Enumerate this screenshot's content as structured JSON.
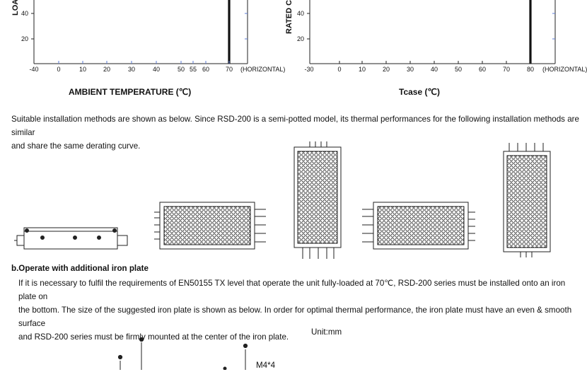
{
  "chart_data": [
    {
      "type": "line",
      "ylabel": "LOA",
      "xlabel": "AMBIENT TEMPERATURE (℃)",
      "x_ticks": [
        "-40",
        "0",
        "10",
        "20",
        "30",
        "40",
        "50",
        "55",
        "60",
        "70",
        "(HORIZONTAL)"
      ],
      "y_ticks": [
        "40",
        "20"
      ],
      "series": [
        {
          "points": [
            [
              70,
              0
            ],
            [
              70,
              100
            ]
          ]
        }
      ]
    },
    {
      "type": "line",
      "ylabel": "RATED C",
      "xlabel": "Tcase (℃)",
      "x_ticks": [
        "-30",
        "0",
        "10",
        "20",
        "30",
        "40",
        "50",
        "60",
        "70",
        "80",
        "(HORIZONTAL)"
      ],
      "y_ticks": [
        "40",
        "20"
      ],
      "series": [
        {
          "points": [
            [
              80,
              0
            ],
            [
              80,
              100
            ]
          ]
        }
      ]
    }
  ],
  "intro": {
    "line1": "Suitable installation methods are shown as below. Since RSD-200 is a semi-potted model, its thermal performances for the following installation methods are similar",
    "line2": "and share the same derating curve."
  },
  "section_b": {
    "heading": "b.Operate with additional iron plate",
    "line1": "If it is necessary to fulfil the requirements of EN50155 TX level that operate the unit fully-loaded at 70℃, RSD-200 series must be installed onto an iron plate on",
    "line2": "the bottom. The size of the suggested iron plate is shown as below. In order for optimal thermal performance, the iron plate must have an even & smooth surface",
    "line3": "and RSD-200 series must be firmly mounted at the center of the iron plate."
  },
  "unit_label": "Unit:mm",
  "screw_label": "M4*4"
}
